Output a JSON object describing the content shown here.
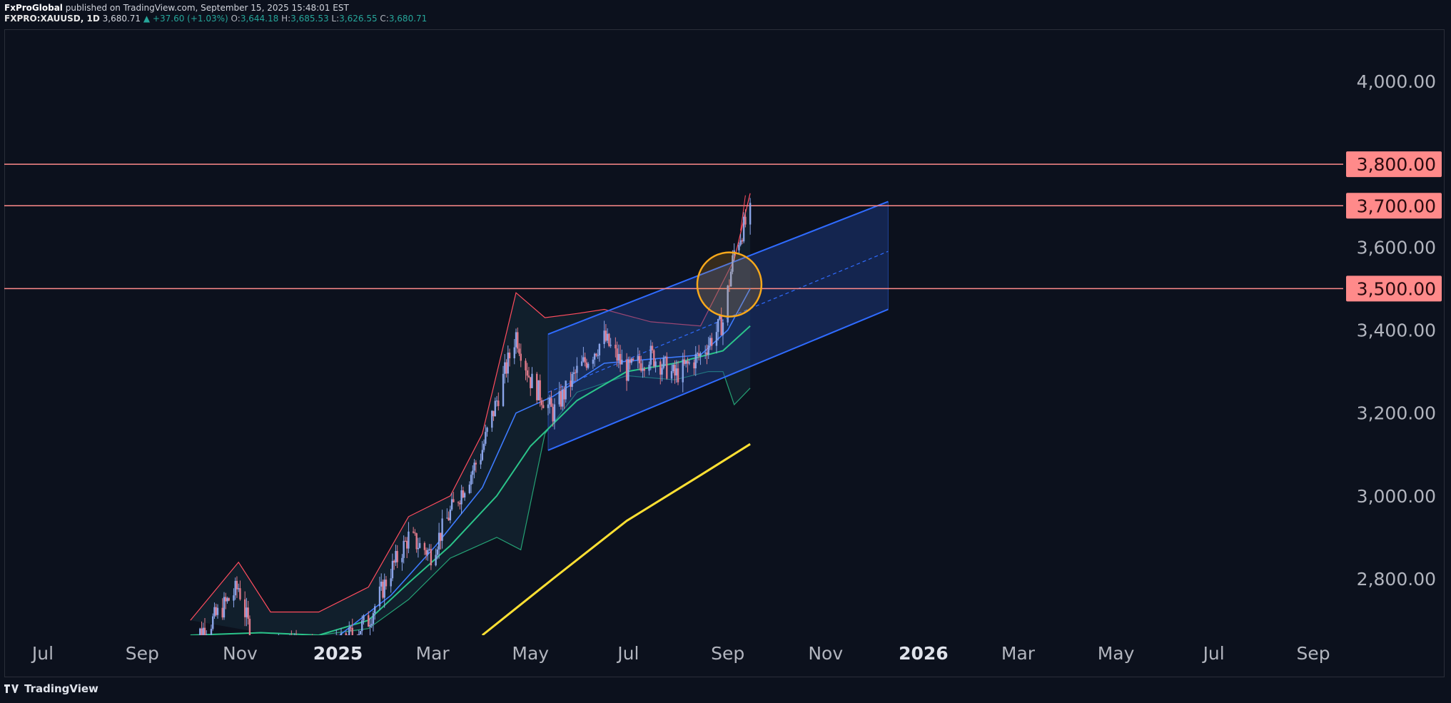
{
  "header": {
    "publisher": "FxProGlobal",
    "published_text": "published on TradingView.com, September 15, 2025 15:48:01 EST",
    "symbol": "FXPRO:XAUUSD, 1D",
    "last": "3,680.71",
    "change": "▲ +37.60 (+1.03%)",
    "open_label": "O:",
    "open": "3,644.18",
    "high_label": "H:",
    "high": "3,685.53",
    "low_label": "L:",
    "low": "3,626.55",
    "close_label": "C:",
    "close": "3,680.71"
  },
  "footer": {
    "brand": "TradingView",
    "logo_icon": "tradingview-logo-icon"
  },
  "colors": {
    "background": "#0c111d",
    "up_candle": "#8aa4e8",
    "down_candle": "#e07a8a",
    "level_line": "#ff8a8a",
    "channel": "#2f6bff",
    "ma_fast": "#3d7bff",
    "ma_mid": "#2bc48a",
    "ma_slow": "#ffe033",
    "band": "#ff4d5e",
    "highlight_circle": "#f7a81b"
  },
  "chart_data": {
    "type": "line",
    "title": "",
    "xlabel": "",
    "ylabel": "",
    "x_axis_ticks": [
      "Jul",
      "Sep",
      "Nov",
      "2025",
      "Mar",
      "May",
      "Jul",
      "Sep",
      "Nov",
      "2026",
      "Mar",
      "May",
      "Jul",
      "Sep"
    ],
    "x_axis_tick_dates": [
      "2024-07-01",
      "2024-09-01",
      "2024-11-01",
      "2025-01-01",
      "2025-03-01",
      "2025-05-01",
      "2025-07-01",
      "2025-09-01",
      "2025-11-01",
      "2026-01-01",
      "2026-03-01",
      "2026-05-01",
      "2026-07-01",
      "2026-09-01"
    ],
    "y_axis_ticks": [
      "2,800.00",
      "3,000.00",
      "3,200.00",
      "3,400.00",
      "3,600.00",
      "4,000.00"
    ],
    "y_axis_tick_values": [
      2800,
      3000,
      3200,
      3400,
      3600,
      4000
    ],
    "xlim": [
      "2024-06-15",
      "2026-09-15"
    ],
    "ylim": [
      2650,
      4150
    ],
    "grid": false,
    "horizontal_levels": [
      {
        "label": "3,800.00",
        "value": 3800
      },
      {
        "label": "3,700.00",
        "value": 3700
      },
      {
        "label": "3,500.00",
        "value": 3500
      }
    ],
    "price_series": {
      "name": "",
      "x": [
        "2024-10-01",
        "2024-10-15",
        "2024-10-31",
        "2024-11-14",
        "2024-12-01",
        "2024-12-20",
        "2025-01-02",
        "2025-01-20",
        "2025-02-03",
        "2025-02-14",
        "2025-02-28",
        "2025-03-12",
        "2025-03-31",
        "2025-04-10",
        "2025-04-22",
        "2025-05-01",
        "2025-05-15",
        "2025-05-30",
        "2025-06-16",
        "2025-06-30",
        "2025-07-15",
        "2025-07-30",
        "2025-08-15",
        "2025-08-29",
        "2025-09-05",
        "2025-09-10",
        "2025-09-15"
      ],
      "y": [
        2650,
        2700,
        2780,
        2570,
        2660,
        2600,
        2640,
        2700,
        2820,
        2900,
        2860,
        2960,
        3100,
        3230,
        3390,
        3280,
        3200,
        3300,
        3380,
        3300,
        3340,
        3290,
        3340,
        3420,
        3590,
        3640,
        3680
      ]
    },
    "channel": {
      "upper": {
        "x": [
          "2025-05-12",
          "2025-12-10"
        ],
        "y": [
          3390,
          3710
        ]
      },
      "middle": {
        "x": [
          "2025-05-12",
          "2025-12-10"
        ],
        "y": [
          3250,
          3590
        ]
      },
      "lower": {
        "x": [
          "2025-05-12",
          "2025-12-10"
        ],
        "y": [
          3110,
          3450
        ]
      }
    },
    "ma_fast": {
      "x": [
        "2025-01-02",
        "2025-02-03",
        "2025-03-03",
        "2025-04-01",
        "2025-04-22",
        "2025-05-15",
        "2025-06-16",
        "2025-07-15",
        "2025-08-15",
        "2025-09-01",
        "2025-09-15"
      ],
      "y": [
        2660,
        2760,
        2880,
        3020,
        3200,
        3240,
        3320,
        3330,
        3340,
        3400,
        3500
      ]
    },
    "ma_mid": {
      "x": [
        "2024-10-01",
        "2024-11-14",
        "2024-12-20",
        "2025-01-20",
        "2025-02-14",
        "2025-03-12",
        "2025-04-10",
        "2025-05-01",
        "2025-05-30",
        "2025-06-30",
        "2025-07-30",
        "2025-08-29",
        "2025-09-15"
      ],
      "y": [
        2650,
        2670,
        2660,
        2700,
        2790,
        2880,
        3000,
        3120,
        3230,
        3300,
        3320,
        3350,
        3410
      ]
    },
    "ma_slow": {
      "x": [
        "2025-04-01",
        "2025-05-15",
        "2025-06-30",
        "2025-08-15",
        "2025-09-15"
      ],
      "y": [
        2650,
        2800,
        2940,
        3050,
        3125
      ]
    },
    "band_upper": {
      "x": [
        "2024-10-01",
        "2024-10-31",
        "2024-11-20",
        "2024-12-20",
        "2025-01-20",
        "2025-02-14",
        "2025-03-12",
        "2025-04-01",
        "2025-04-22",
        "2025-05-10",
        "2025-05-30",
        "2025-06-16",
        "2025-07-15",
        "2025-08-15",
        "2025-09-05",
        "2025-09-15"
      ],
      "y": [
        2700,
        2840,
        2720,
        2720,
        2780,
        2950,
        3000,
        3150,
        3490,
        3430,
        3440,
        3450,
        3420,
        3410,
        3570,
        3730
      ]
    },
    "band_lower": {
      "x": [
        "2024-11-14",
        "2024-12-20",
        "2025-01-20",
        "2025-02-14",
        "2025-03-12",
        "2025-04-10",
        "2025-04-25",
        "2025-05-10",
        "2025-05-30",
        "2025-06-30",
        "2025-07-30",
        "2025-08-20",
        "2025-08-29",
        "2025-09-05",
        "2025-09-15"
      ],
      "y": [
        2670,
        2650,
        2680,
        2750,
        2850,
        2900,
        2870,
        3150,
        3250,
        3290,
        3280,
        3300,
        3300,
        3220,
        3260
      ]
    },
    "highlight_circle": {
      "x": "2025-09-02",
      "y": 3510
    }
  }
}
